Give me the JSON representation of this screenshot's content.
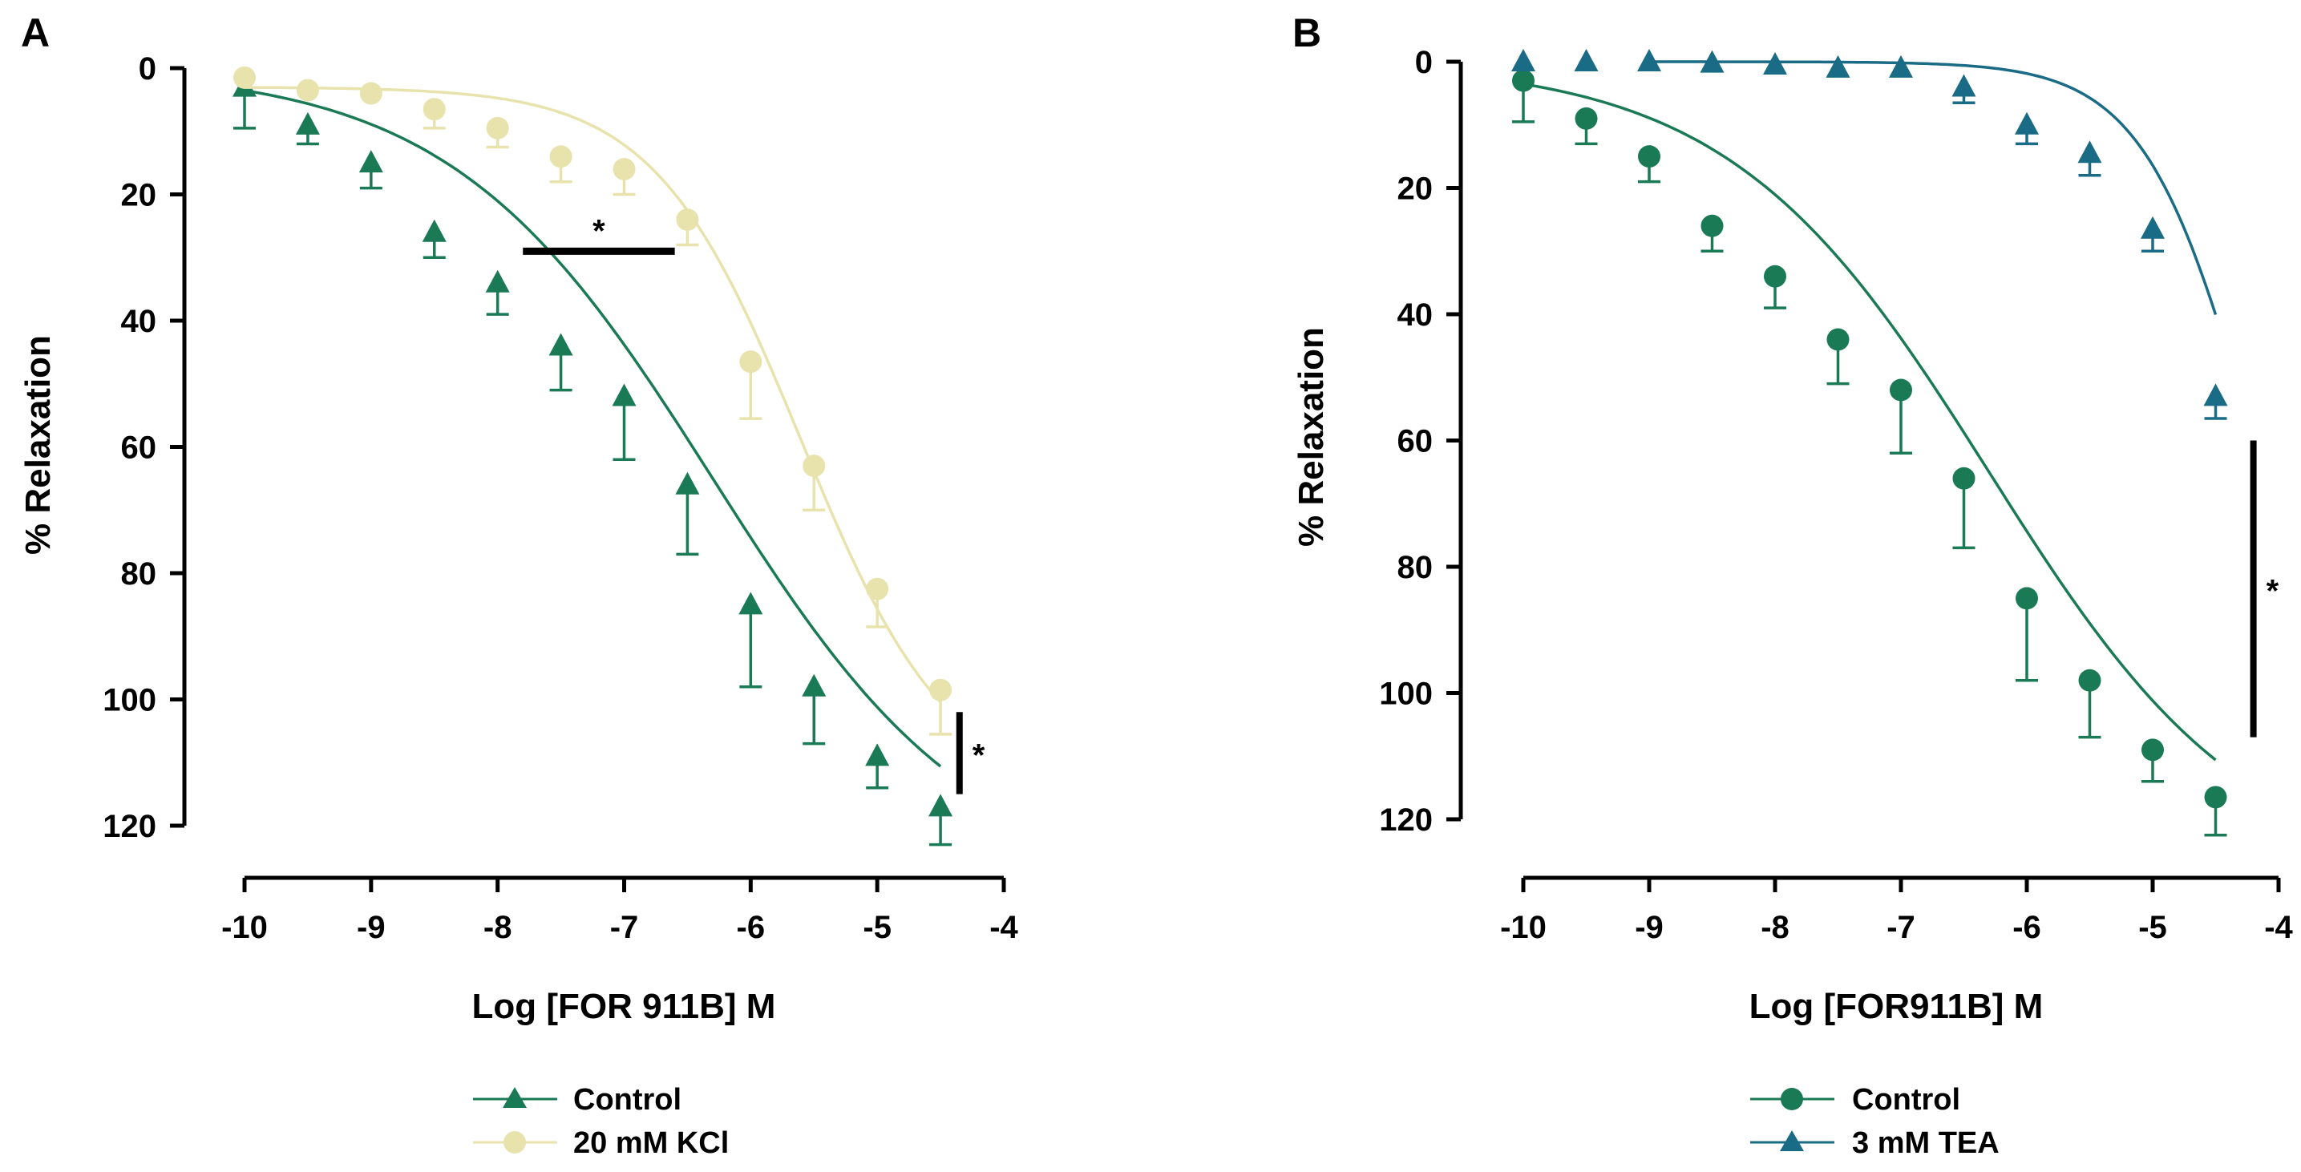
{
  "chart_data": [
    {
      "type": "line",
      "panel_label": "A",
      "xlabel": "Log [FOR 911B] M",
      "ylabel": "% Relaxation",
      "xlim": [
        -10,
        -4
      ],
      "ylim": [
        0,
        120
      ],
      "y_inverted": true,
      "x_ticks": [
        -10,
        -9,
        -8,
        -7,
        -6,
        -5,
        -4
      ],
      "x_tick_labels": [
        "-10",
        "-9",
        "-8",
        "-7",
        "-6",
        "-5",
        "-4"
      ],
      "y_ticks": [
        0,
        20,
        40,
        60,
        80,
        100,
        120
      ],
      "y_tick_labels": [
        "0",
        "20",
        "40",
        "60",
        "80",
        "100",
        "120"
      ],
      "series": [
        {
          "name": "Control",
          "color": "#1a7a55",
          "marker": "triangle",
          "x": [
            -10,
            -9.5,
            -9,
            -8.5,
            -8,
            -7.5,
            -7,
            -6.5,
            -6,
            -5.5,
            -5,
            -4.5
          ],
          "y": [
            3,
            9,
            15,
            26,
            34,
            44,
            52,
            66,
            85,
            98,
            109,
            117
          ],
          "error": [
            6.5,
            3,
            4,
            4,
            5,
            7,
            10,
            11,
            13,
            9,
            5,
            6
          ],
          "curve": {
            "bottom": 0,
            "top": 130,
            "logec50": -6.3,
            "hill": 0.42,
            "x_start": -10,
            "x_end": -4.5
          }
        },
        {
          "name": "20 mM KCl",
          "color": "#e8e3ad",
          "marker": "circle",
          "x": [
            -10,
            -9.5,
            -9,
            -8.5,
            -8,
            -7.5,
            -7,
            -6.5,
            -6,
            -5.5,
            -5,
            -4.5
          ],
          "y": [
            1.5,
            3.5,
            4,
            6.5,
            9.5,
            14,
            16,
            24,
            46.5,
            63,
            82.5,
            98.5
          ],
          "error": [
            0,
            0,
            0,
            3,
            3,
            4,
            4,
            4,
            9,
            7,
            6,
            7
          ],
          "curve": {
            "bottom": 3,
            "top": 115,
            "logec50": -5.6,
            "hill": 0.75,
            "x_start": -10,
            "x_end": -4.5
          }
        }
      ],
      "annotations": [
        {
          "type": "hbar",
          "x_range": [
            -7.8,
            -6.6
          ],
          "y": 29,
          "label": "*"
        },
        {
          "type": "vbar",
          "x": -4.35,
          "y_range": [
            102,
            115
          ],
          "label": "*"
        }
      ],
      "legend": {
        "placement": "bottom-center",
        "entries": [
          "Control",
          "20 mM KCl"
        ]
      }
    },
    {
      "type": "line",
      "panel_label": "B",
      "xlabel": "Log [FOR911B] M",
      "ylabel": "% Relaxation",
      "xlim": [
        -10,
        -4
      ],
      "ylim": [
        0,
        120
      ],
      "y_inverted": true,
      "x_ticks": [
        -10,
        -9,
        -8,
        -7,
        -6,
        -5,
        -4
      ],
      "x_tick_labels": [
        "-10",
        "-9",
        "-8",
        "-7",
        "-6",
        "-5",
        "-4"
      ],
      "y_ticks": [
        0,
        20,
        40,
        60,
        80,
        100,
        120
      ],
      "y_tick_labels": [
        "0",
        "20",
        "40",
        "60",
        "80",
        "100",
        "120"
      ],
      "series": [
        {
          "name": "Control",
          "color": "#1a7a55",
          "marker": "circle",
          "x": [
            -10,
            -9.5,
            -9,
            -8.5,
            -8,
            -7.5,
            -7,
            -6.5,
            -6,
            -5.5,
            -5,
            -4.5
          ],
          "y": [
            3,
            9,
            15,
            26,
            34,
            44,
            52,
            66,
            85,
            98,
            109,
            116.5
          ],
          "error": [
            6.5,
            4,
            4,
            4,
            5,
            7,
            10,
            11,
            13,
            9,
            5,
            6
          ],
          "curve": {
            "bottom": 0,
            "top": 130,
            "logec50": -6.3,
            "hill": 0.42,
            "x_start": -10,
            "x_end": -4.5
          }
        },
        {
          "name": "3 mM TEA",
          "color": "#1a6b85",
          "marker": "triangle",
          "x": [
            -10,
            -9.5,
            -9,
            -8.5,
            -8,
            -7.5,
            -7,
            -6.5,
            -6,
            -5.5,
            -5,
            -4.5
          ],
          "y": [
            0,
            0,
            0,
            0.2,
            0.5,
            1,
            1,
            4,
            10,
            14.5,
            26.5,
            53
          ],
          "error": [
            0,
            0,
            0,
            0,
            0,
            0,
            0,
            2.5,
            3,
            3.5,
            3.5,
            3.5
          ],
          "curve": {
            "bottom": 0,
            "top": 120,
            "logec50": -4.2,
            "hill": 1.0,
            "x_start": -9,
            "x_end": -4.5
          }
        }
      ],
      "annotations": [
        {
          "type": "vbar",
          "x": -4.2,
          "y_range": [
            60,
            107
          ],
          "label": "*"
        }
      ],
      "legend": {
        "placement": "bottom-center",
        "entries": [
          "Control",
          "3 mM TEA"
        ]
      }
    }
  ]
}
